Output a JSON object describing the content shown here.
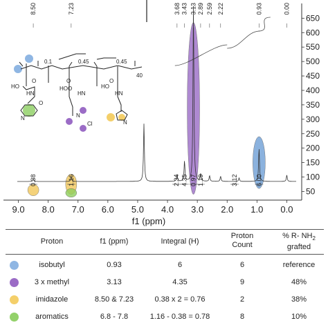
{
  "chart_data": {
    "type": "line",
    "xlabel": "f1 (ppm)",
    "x_ticks": [
      "9.0",
      "8.0",
      "7.0",
      "6.0",
      "5.0",
      "4.0",
      "3.0",
      "2.0",
      "1.0",
      "0.0"
    ],
    "x_range": [
      9.5,
      -0.5
    ],
    "y_ticks": [
      "650",
      "600",
      "550",
      "500",
      "450",
      "400",
      "350",
      "300",
      "250",
      "200",
      "150",
      "100",
      "50"
    ],
    "y_range": [
      20,
      670
    ],
    "peak_labels": [
      {
        "ppm": 8.5,
        "text": "8.50"
      },
      {
        "ppm": 7.23,
        "text": "7.23"
      },
      {
        "ppm": 3.68,
        "text": "3.68"
      },
      {
        "ppm": 3.43,
        "text": "3.43"
      },
      {
        "ppm": 3.13,
        "text": "3.13"
      },
      {
        "ppm": 2.89,
        "text": "2.89"
      },
      {
        "ppm": 2.59,
        "text": "2.59"
      },
      {
        "ppm": 2.22,
        "text": "2.22"
      },
      {
        "ppm": 0.93,
        "text": "0.93"
      },
      {
        "ppm": 0.0,
        "text": "0.00"
      }
    ],
    "integrals": [
      {
        "ppm": 8.5,
        "text": "0.38"
      },
      {
        "ppm": 7.23,
        "text": "1.16"
      },
      {
        "ppm": 3.7,
        "text": "2.34"
      },
      {
        "ppm": 3.43,
        "text": "4.35"
      },
      {
        "ppm": 3.13,
        "text": "0.97"
      },
      {
        "ppm": 2.89,
        "text": "1.19"
      },
      {
        "ppm": 1.75,
        "text": "3.12"
      },
      {
        "ppm": 0.93,
        "text": "6.00"
      }
    ],
    "spectrum_peaks": [
      {
        "ppm": 8.5,
        "height": 8
      },
      {
        "ppm": 7.23,
        "height": 16
      },
      {
        "ppm": 4.79,
        "height": 200
      },
      {
        "ppm": 3.68,
        "height": 25
      },
      {
        "ppm": 3.43,
        "height": 70
      },
      {
        "ppm": 3.13,
        "height": 610
      },
      {
        "ppm": 2.89,
        "height": 25
      },
      {
        "ppm": 2.59,
        "height": 20
      },
      {
        "ppm": 2.22,
        "height": 18
      },
      {
        "ppm": 1.6,
        "height": 12
      },
      {
        "ppm": 0.93,
        "height": 115
      },
      {
        "ppm": 0.0,
        "height": 22
      }
    ],
    "highlights": [
      {
        "ppm": 0.93,
        "color": "#6f9fd6",
        "ymin": 60,
        "ymax": 240
      },
      {
        "ppm": 3.13,
        "color": "#9b6cc6",
        "ymin": 40,
        "ymax": 635
      },
      {
        "ppm": 8.5,
        "color": "#f2c85b",
        "ymin": 35,
        "ymax": 75
      },
      {
        "ppm": 7.23,
        "color": "#f2c85b",
        "ymin": 40,
        "ymax": 110
      },
      {
        "ppm": 7.23,
        "color": "#8fcf5c",
        "ymin": 30,
        "ymax": 60
      }
    ]
  },
  "structure": {
    "sub_1": "0.1",
    "sub_2": "0.45",
    "sub_3": "0.45",
    "sub_4": "40",
    "atoms": [
      "HO",
      "O",
      "HN",
      "O",
      "N",
      "O",
      "HO",
      "O",
      "HN",
      "N",
      "Cl",
      "HO",
      "O",
      "HN",
      "N"
    ]
  },
  "table": {
    "headers": {
      "proton": "Proton",
      "f1": "f1 (ppm)",
      "integral": "Integral (H)",
      "count_1": "Proton",
      "count_2": "Count",
      "pct_1": "% R- NH",
      "pct_sub": "2",
      "pct_2": "grafted"
    },
    "rows": [
      {
        "color": "#8fb6e3",
        "proton": "isobutyl",
        "f1": "0.93",
        "integral": "6",
        "count": "6",
        "pct": "reference"
      },
      {
        "color": "#9b6cc6",
        "proton": "3 x methyl",
        "f1": "3.13",
        "integral": "4.35",
        "count": "9",
        "pct": "48%"
      },
      {
        "color": "#f4cf6a",
        "proton": "imidazole",
        "f1": "8.50 & 7.23",
        "integral": "0.38 x 2 = 0.76",
        "count": "2",
        "pct": "38%"
      },
      {
        "color": "#93d16a",
        "proton": "aromatics",
        "f1": "6.8 - 7.8",
        "integral": "1.16 - 0.38 = 0.78",
        "count": "8",
        "pct": "10%"
      }
    ]
  }
}
